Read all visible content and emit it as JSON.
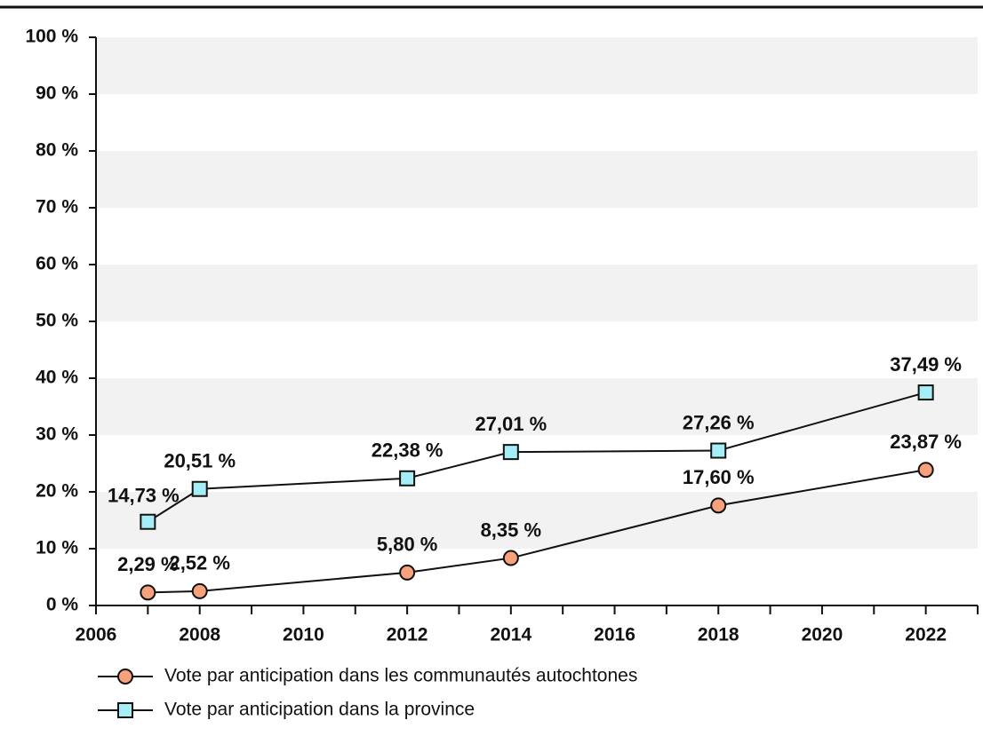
{
  "chart_data": {
    "type": "line",
    "x": [
      2007,
      2008,
      2012,
      2014,
      2018,
      2022
    ],
    "series": [
      {
        "name": "Vote par anticipation dans les communautés autochtones",
        "color": "#f7a27c",
        "marker": "circle",
        "values": [
          2.29,
          2.52,
          5.8,
          8.35,
          17.6,
          23.87
        ],
        "value_labels": [
          "2,29 %",
          "2,52 %",
          "5,80 %",
          "8,35 %",
          "17,60 %",
          "23,87 %"
        ]
      },
      {
        "name": "Vote par anticipation dans la province",
        "color": "#a6eef6",
        "marker": "square",
        "values": [
          14.73,
          20.51,
          22.38,
          27.01,
          27.26,
          37.49
        ],
        "value_labels": [
          "14,73 %",
          "20,51 %",
          "22,38 %",
          "27,01 %",
          "27,26 %",
          "37,49 %"
        ]
      }
    ],
    "xlim": [
      2006,
      2023
    ],
    "xticks": [
      2006,
      2008,
      2010,
      2012,
      2014,
      2016,
      2018,
      2020,
      2022
    ],
    "xminor_ticks": [
      2007,
      2009,
      2011,
      2013,
      2015,
      2017,
      2019,
      2021,
      2023
    ],
    "ylim": [
      0,
      100
    ],
    "yticks": [
      {
        "value": 0,
        "label": "0 %"
      },
      {
        "value": 10,
        "label": "10 %"
      },
      {
        "value": 20,
        "label": "20 %"
      },
      {
        "value": 30,
        "label": "30 %"
      },
      {
        "value": 40,
        "label": "40 %"
      },
      {
        "value": 50,
        "label": "50 %"
      },
      {
        "value": 60,
        "label": "60 %"
      },
      {
        "value": 70,
        "label": "70 %"
      },
      {
        "value": 80,
        "label": "80 %"
      },
      {
        "value": 90,
        "label": "90 %"
      },
      {
        "value": 100,
        "label": "100 %"
      }
    ],
    "band_fill": "#f2f2f2",
    "legend": "bottom"
  }
}
